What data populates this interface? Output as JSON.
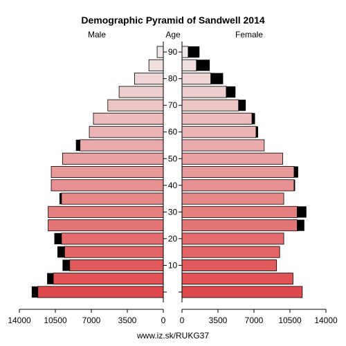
{
  "chart_data": {
    "type": "bar",
    "title": "Demographic Pyramid of Sandwell 2014",
    "male_label": "Male",
    "female_label": "Female",
    "age_label": "Age",
    "source": "www.iz.sk/RUKG37",
    "age_ticks": [
      "10",
      "20",
      "30",
      "40",
      "50",
      "60",
      "70",
      "80",
      "90"
    ],
    "x_ticks_male": [
      "14000",
      "10500",
      "7000",
      "3500",
      "0"
    ],
    "x_ticks_female": [
      "0",
      "3500",
      "7000",
      "10500",
      "14000"
    ],
    "xlim": [
      0,
      14000
    ],
    "groups": [
      "0-4",
      "5-9",
      "10-14",
      "15-19",
      "20-24",
      "25-29",
      "30-34",
      "35-39",
      "40-44",
      "45-49",
      "50-54",
      "55-59",
      "60-64",
      "65-69",
      "70-74",
      "75-79",
      "80-84",
      "85-89",
      "90+"
    ],
    "series": [
      {
        "name": "Male",
        "values": [
          12200,
          10700,
          9100,
          9600,
          9900,
          11200,
          11200,
          9900,
          10900,
          10900,
          9800,
          8100,
          7200,
          6800,
          5400,
          4300,
          2800,
          1400,
          600
        ]
      },
      {
        "name": "Female",
        "values": [
          11700,
          10800,
          9200,
          9500,
          9900,
          11200,
          11200,
          9900,
          10900,
          10900,
          9800,
          8000,
          7200,
          6800,
          5500,
          4300,
          2800,
          1400,
          600
        ]
      }
    ],
    "excess_male": [
      600,
      600,
      700,
      700,
      700,
      0,
      0,
      200,
      0,
      0,
      0,
      400,
      0,
      0,
      0,
      0,
      0,
      0,
      0
    ],
    "excess_female": [
      0,
      0,
      0,
      0,
      0,
      700,
      900,
      0,
      100,
      400,
      0,
      0,
      200,
      300,
      700,
      900,
      1200,
      1300,
      1100
    ],
    "colors": {
      "young": "#e0494b",
      "old": "#f0e8e8",
      "excess": "#000000"
    }
  }
}
